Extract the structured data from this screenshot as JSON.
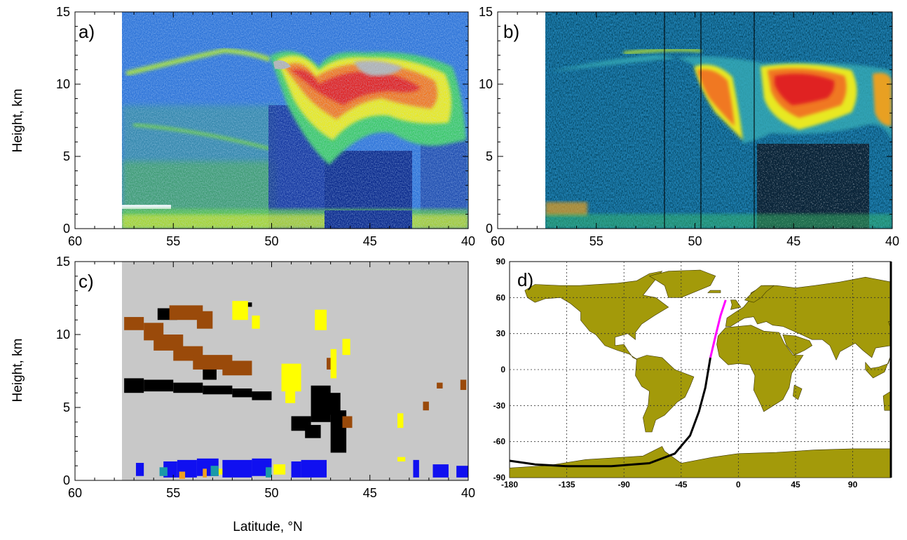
{
  "figure": {
    "ylabel_top": "Height, km",
    "ylabel_bottom": "Height, km",
    "xlabel": "Latitude, °N"
  },
  "chart_data": [
    {
      "panel": "a)",
      "type": "heatmap",
      "xlim": [
        60,
        40
      ],
      "ylim": [
        0,
        15
      ],
      "x_ticks": [
        "60",
        "55",
        "50",
        "45",
        "40"
      ],
      "y_ticks": [
        "0",
        "5",
        "10",
        "15"
      ],
      "data_x_range": [
        57.5,
        40
      ],
      "colors": [
        "#0a2a8c",
        "#1e5fd0",
        "#2a9fe0",
        "#3cc86a",
        "#e8e820",
        "#f07820",
        "#e02020",
        "#b0b0b0"
      ],
      "features": [
        {
          "kind": "cloud",
          "lat_from": 50,
          "lat_to": 40,
          "height_from": 5,
          "height_to": 12
        },
        {
          "kind": "attenuated",
          "lat_from": 47.2,
          "lat_to": 42.3,
          "height_from": 0,
          "height_to": 5.5
        },
        {
          "kind": "thin-layer",
          "lat_from": 57.5,
          "lat_to": 50,
          "height_from": 11,
          "height_to": 12
        },
        {
          "kind": "boundary-layer",
          "lat_from": 57.5,
          "lat_to": 53,
          "height_from": 1,
          "height_to": 1.8
        }
      ]
    },
    {
      "panel": "b)",
      "type": "heatmap",
      "xlim": [
        60,
        40
      ],
      "ylim": [
        0,
        15
      ],
      "x_ticks": [
        "60",
        "55",
        "50",
        "45",
        "40"
      ],
      "y_ticks": [
        "0",
        "5",
        "10",
        "15"
      ],
      "data_x_range": [
        57.5,
        40
      ],
      "colors": [
        "#0b1a3a",
        "#1a4f8a",
        "#2aa0c8",
        "#3cc86a",
        "#e8e820",
        "#f07820",
        "#e02020"
      ],
      "features": [
        {
          "kind": "cloud",
          "lat_from": 50.5,
          "lat_to": 40,
          "height_from": 5.5,
          "height_to": 12
        },
        {
          "kind": "noisy-low",
          "lat_from": 46.5,
          "lat_to": 41,
          "height_from": 0,
          "height_to": 5.5
        }
      ]
    },
    {
      "panel": "c)",
      "type": "heatmap",
      "xlim": [
        60,
        40
      ],
      "ylim": [
        0,
        15
      ],
      "x_ticks": [
        "60",
        "55",
        "50",
        "45",
        "40"
      ],
      "y_ticks": [
        "0",
        "5",
        "10",
        "15"
      ],
      "data_x_range": [
        57.5,
        40
      ],
      "background_color": "#c8c8c8",
      "class_colors": {
        "black": "#000000",
        "brown": "#9a4a0a",
        "yellow": "#ffff00",
        "blue": "#1010f0",
        "teal": "#1a9aa8",
        "orange": "#f0a020"
      }
    },
    {
      "panel": "d)",
      "type": "map",
      "x_ticks": [
        "-180",
        "-135",
        "-90",
        "-45",
        "0",
        "45",
        "90"
      ],
      "y_ticks": [
        "90",
        "60",
        "30",
        "0",
        "-30",
        "-60",
        "-90"
      ],
      "land_color": "#a39a0a",
      "track_colors": {
        "southern": "#000000",
        "northern": "#ff00ff"
      },
      "track_southern": [
        [
          -180,
          -76
        ],
        [
          -160,
          -79
        ],
        [
          -135,
          -80.5
        ],
        [
          -100,
          -80.5
        ],
        [
          -70,
          -78
        ],
        [
          -50,
          -70
        ],
        [
          -38,
          -55
        ],
        [
          -31,
          -35
        ],
        [
          -26,
          -15
        ],
        [
          -22,
          10
        ]
      ],
      "track_northern": [
        [
          -22,
          10
        ],
        [
          -18,
          28
        ],
        [
          -14,
          45
        ],
        [
          -10,
          58
        ]
      ]
    }
  ]
}
